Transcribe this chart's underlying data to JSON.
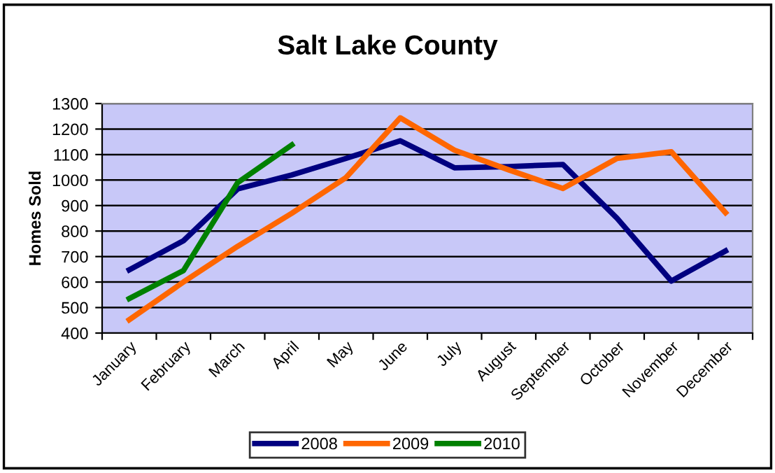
{
  "chart_data": {
    "type": "line",
    "title": "Salt Lake County",
    "ylabel": "Homes Sold",
    "categories": [
      "January",
      "February",
      "March",
      "April",
      "May",
      "June",
      "July",
      "August",
      "September",
      "October",
      "November",
      "December"
    ],
    "series": [
      {
        "name": "2008",
        "color": "#000080",
        "values": [
          648,
          762,
          965,
          1020,
          1085,
          1154,
          1048,
          1053,
          1061,
          850,
          604,
          722
        ]
      },
      {
        "name": "2009",
        "color": "#ff6600",
        "values": [
          452,
          600,
          740,
          870,
          1010,
          1244,
          1117,
          1040,
          967,
          1085,
          1111,
          872
        ]
      },
      {
        "name": "2010",
        "color": "#008000",
        "values": [
          535,
          645,
          990,
          1138,
          null,
          null,
          null,
          null,
          null,
          null,
          null,
          null
        ]
      }
    ],
    "ylim": [
      400,
      1300
    ],
    "yticks": [
      400,
      500,
      600,
      700,
      800,
      900,
      1000,
      1100,
      1200,
      1300
    ],
    "grid": "y",
    "legend": "bottom",
    "marker": "none",
    "line_style": "solid"
  }
}
